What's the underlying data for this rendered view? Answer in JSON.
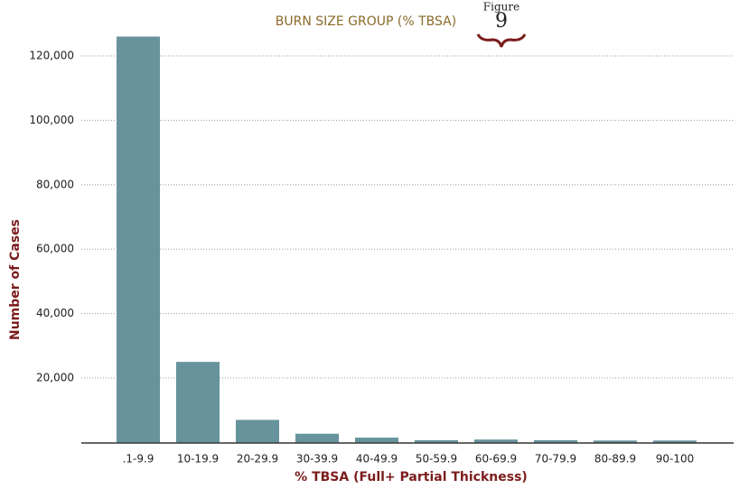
{
  "chart_data": {
    "type": "bar",
    "title": "BURN SIZE GROUP (% TBSA)",
    "figure_label": "Figure",
    "figure_number": "9",
    "x_label": "% TBSA  (Full+ Partial Thickness)",
    "y_label": "Number of Cases",
    "categories": [
      ".1-9.9",
      "10-19.9",
      "20-29.9",
      "30-39.9",
      "40-49.9",
      "50-59.9",
      "60-69.9",
      "70-79.9",
      "80-89.9",
      "90-100"
    ],
    "values": [
      126000,
      25000,
      7000,
      2700,
      1500,
      700,
      900,
      700,
      600,
      600
    ],
    "color": "#66939c",
    "ylim": [
      0,
      128000
    ],
    "yticks": [
      {
        "value": 20000,
        "label": "20,000"
      },
      {
        "value": 40000,
        "label": "40,000"
      },
      {
        "value": 60000,
        "label": "60,000"
      },
      {
        "value": 80000,
        "label": "80,000"
      },
      {
        "value": 100000,
        "label": "100,000"
      },
      {
        "value": 120000,
        "label": "120,000"
      }
    ],
    "grid": true
  }
}
